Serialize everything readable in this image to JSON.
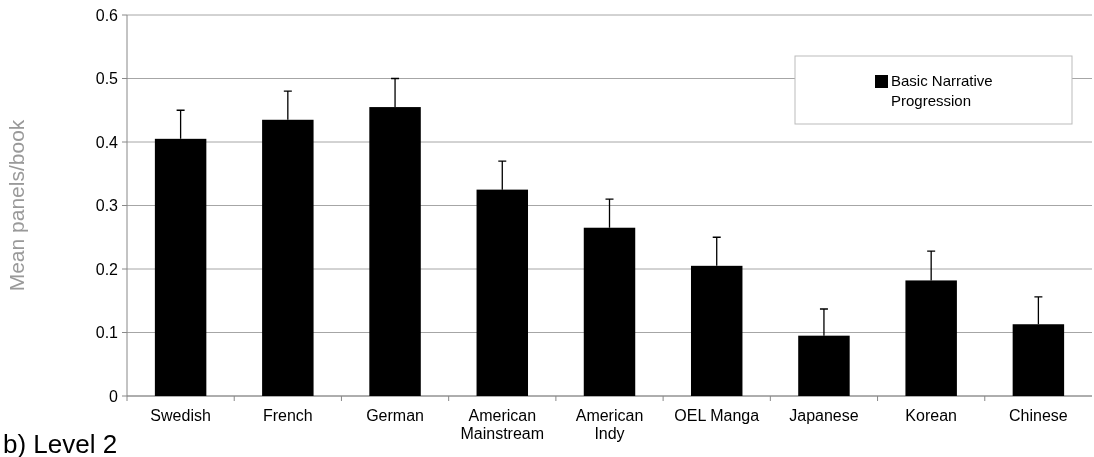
{
  "chart_data": {
    "type": "bar",
    "ylabel": "Mean panels/book",
    "categories": [
      "Swedish",
      "French",
      "German",
      "American Mainstream",
      "American Indy",
      "OEL Manga",
      "Japanese",
      "Korean",
      "Chinese"
    ],
    "series": [
      {
        "name": "Basic Narrative Progression",
        "color": "#000000",
        "values": [
          0.405,
          0.435,
          0.455,
          0.325,
          0.265,
          0.205,
          0.095,
          0.182,
          0.113
        ],
        "errors": [
          [
            0.405,
            0.45
          ],
          [
            0.435,
            0.48
          ],
          [
            0.455,
            0.5
          ],
          [
            0.325,
            0.37
          ],
          [
            0.265,
            0.31
          ],
          [
            0.205,
            0.25
          ],
          [
            0.095,
            0.137
          ],
          [
            0.182,
            0.228
          ],
          [
            0.113,
            0.156
          ]
        ]
      }
    ],
    "ylim": [
      0,
      0.6
    ],
    "yticks": [
      0,
      0.1,
      0.2,
      0.3,
      0.4,
      0.5,
      0.6
    ],
    "grid": "y",
    "legend": "top right",
    "annotations": [
      "b) Level 2"
    ]
  }
}
